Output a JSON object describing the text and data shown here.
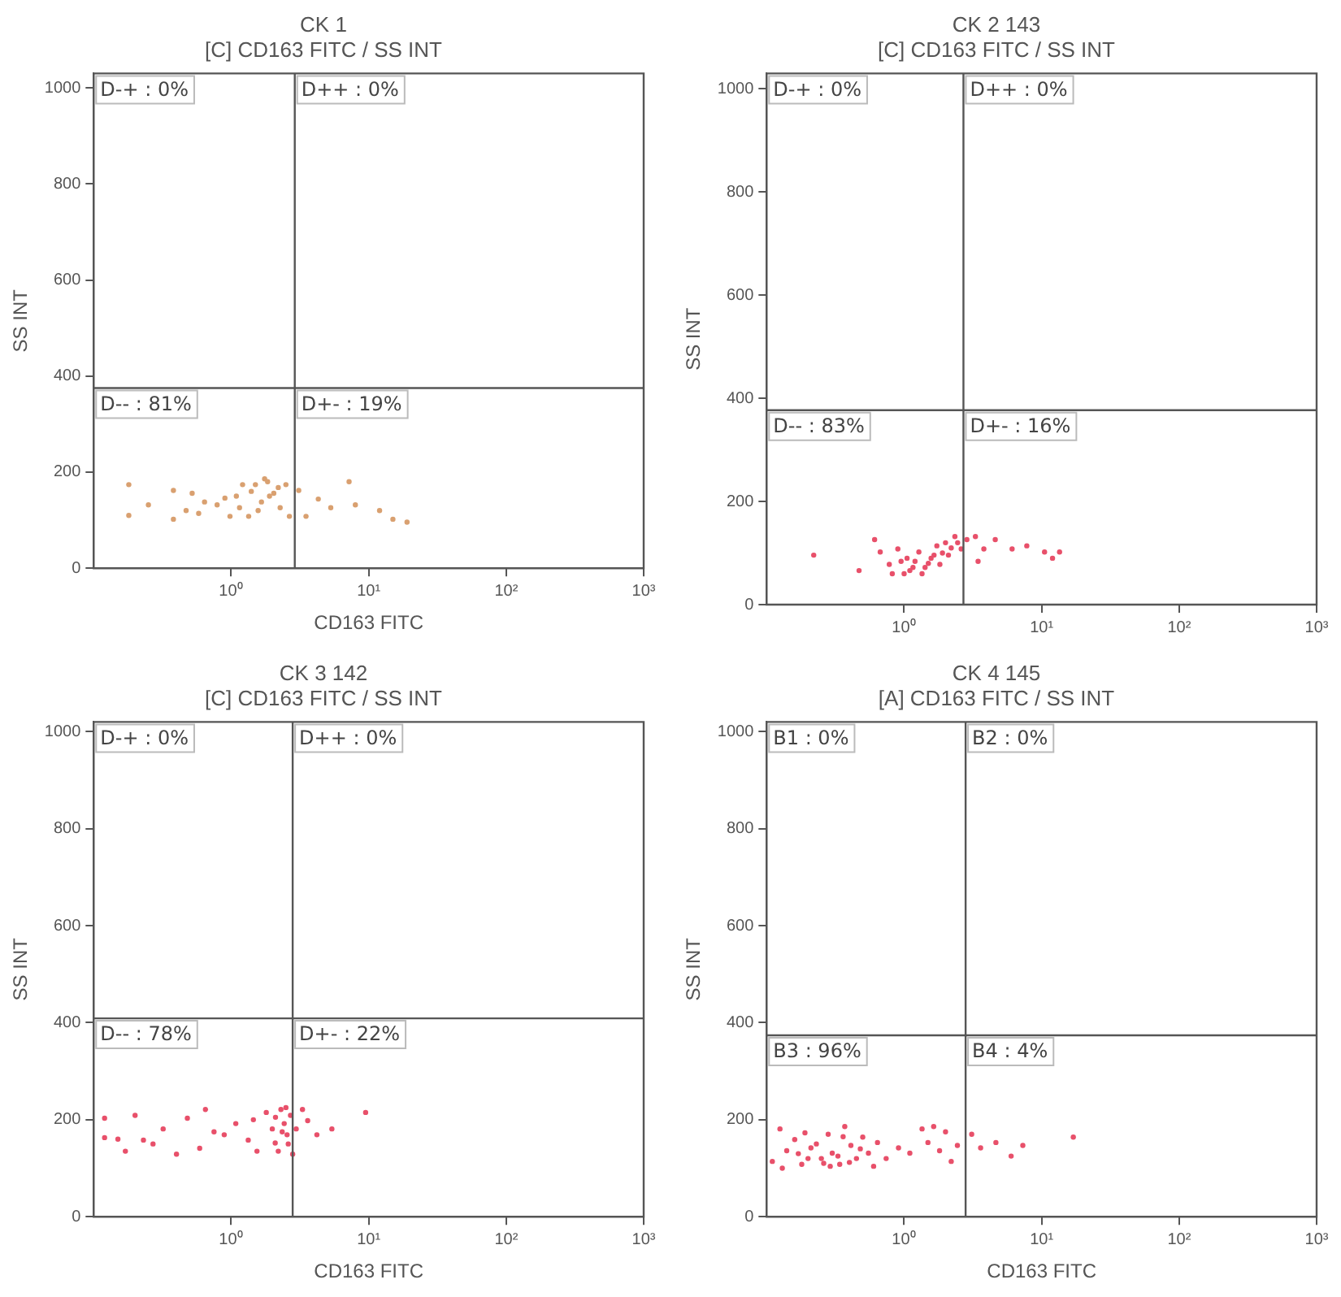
{
  "chart_data": [
    {
      "type": "scatter",
      "title": "CK 1",
      "subtitle": "[C] CD163 FITC / SS INT",
      "xlabel": "CD163 FITC",
      "ylabel": "SS INT",
      "log": "x",
      "xlim": [
        0.1,
        1000
      ],
      "ylim": [
        0,
        1030
      ],
      "xticks": [
        {
          "value": 1,
          "label": "10⁰"
        },
        {
          "value": 10,
          "label": "10¹"
        },
        {
          "value": 100,
          "label": "10²"
        },
        {
          "value": 1000,
          "label": "10³"
        }
      ],
      "yticks": [
        0,
        200,
        400,
        600,
        800,
        1000
      ],
      "grid": false,
      "legend": false,
      "marker": "circle",
      "ref_lines": [
        {
          "axis": "x",
          "value": 2.9
        },
        {
          "axis": "y",
          "value": 375
        }
      ],
      "annotations": [
        "D-+ : 0%",
        "D++ : 0%",
        "D-- : 81%",
        "D+- : 19%"
      ],
      "series": [
        {
          "color": "#d9a070",
          "x": [
            0.18,
            0.18,
            0.25,
            0.38,
            0.38,
            0.52,
            0.58,
            0.79,
            0.98,
            1.09,
            1.21,
            1.5,
            1.66,
            1.75,
            1.84,
            2.04,
            2.27,
            2.5,
            2.65,
            3.1,
            3.5,
            4.3,
            5.3,
            7.2,
            8.0,
            12,
            15,
            19,
            1.34,
            0.64,
            0.47,
            1.15,
            1.57,
            1.9,
            2.2,
            1.4,
            0.9
          ],
          "values": [
            174,
            110,
            132,
            162,
            102,
            156,
            114,
            132,
            108,
            150,
            174,
            174,
            138,
            186,
            180,
            156,
            126,
            174,
            108,
            162,
            108,
            144,
            126,
            180,
            132,
            120,
            102,
            96,
            108,
            138,
            120,
            126,
            120,
            150,
            168,
            160,
            146
          ]
        }
      ]
    },
    {
      "type": "scatter",
      "title": "CK 2 143",
      "subtitle": "[C] CD163 FITC / SS INT",
      "ylabel": "SS INT",
      "log": "x",
      "xlim": [
        0.1,
        1000
      ],
      "ylim": [
        0,
        1030
      ],
      "xticks": [
        {
          "value": 1,
          "label": "10⁰"
        },
        {
          "value": 10,
          "label": "10¹"
        },
        {
          "value": 100,
          "label": "10²"
        },
        {
          "value": 1000,
          "label": "10³"
        }
      ],
      "yticks": [
        0,
        200,
        400,
        600,
        800,
        1000
      ],
      "grid": false,
      "legend": false,
      "marker": "circle",
      "ref_lines": [
        {
          "axis": "x",
          "value": 2.7
        },
        {
          "axis": "y",
          "value": 377
        }
      ],
      "annotations": [
        "D-+ : 0%",
        "D++ : 0%",
        "D-- : 83%",
        "D+- : 16%"
      ],
      "series": [
        {
          "color": "#e8506a",
          "x": [
            0.22,
            0.47,
            0.67,
            0.78,
            0.9,
            1.0,
            1.05,
            1.16,
            1.28,
            1.42,
            1.57,
            1.73,
            1.82,
            2.0,
            2.1,
            2.34,
            2.6,
            2.86,
            3.3,
            3.45,
            3.8,
            4.6,
            6.1,
            7.8,
            10.5,
            12,
            13.5,
            0.61,
            0.82,
            1.35,
            1.2,
            1.5,
            1.9,
            2.2,
            1.1,
            0.95,
            1.65,
            2.45
          ],
          "values": [
            96,
            66,
            102,
            78,
            108,
            60,
            90,
            72,
            102,
            72,
            90,
            114,
            78,
            120,
            96,
            132,
            108,
            126,
            132,
            84,
            108,
            126,
            108,
            114,
            102,
            90,
            102,
            126,
            60,
            60,
            84,
            80,
            100,
            110,
            66,
            84,
            96,
            120
          ]
        }
      ]
    },
    {
      "type": "scatter",
      "title": "CK 3 142",
      "subtitle": "[C] CD163 FITC / SS INT",
      "xlabel": "CD163 FITC",
      "ylabel": "SS INT",
      "log": "x",
      "xlim": [
        0.1,
        1000
      ],
      "ylim": [
        0,
        1020
      ],
      "xticks": [
        {
          "value": 1,
          "label": "10⁰"
        },
        {
          "value": 10,
          "label": "10¹"
        },
        {
          "value": 100,
          "label": "10²"
        },
        {
          "value": 1000,
          "label": "10³"
        }
      ],
      "yticks": [
        0,
        200,
        400,
        600,
        800,
        1000
      ],
      "grid": false,
      "legend": false,
      "marker": "circle",
      "ref_lines": [
        {
          "axis": "x",
          "value": 2.8
        },
        {
          "axis": "y",
          "value": 409
        }
      ],
      "annotations": [
        "D-+ : 0%",
        "D++ : 0%",
        "D-- : 78%",
        "D+- : 22%"
      ],
      "series": [
        {
          "color": "#e8506a",
          "x": [
            0.12,
            0.12,
            0.17,
            0.2,
            0.23,
            0.32,
            0.4,
            0.48,
            0.59,
            0.65,
            0.89,
            1.08,
            1.33,
            1.54,
            1.8,
            1.99,
            2.09,
            2.2,
            2.3,
            2.43,
            2.55,
            2.7,
            2.8,
            2.97,
            3.3,
            3.6,
            4.2,
            5.4,
            9.5,
            0.15,
            1.45,
            2.1,
            2.35,
            2.6,
            2.5,
            0.27,
            0.75
          ],
          "values": [
            203,
            163,
            135,
            209,
            158,
            181,
            129,
            203,
            141,
            221,
            169,
            192,
            158,
            135,
            215,
            181,
            152,
            135,
            221,
            192,
            169,
            209,
            129,
            181,
            221,
            198,
            169,
            181,
            215,
            160,
            200,
            205,
            175,
            150,
            225,
            150,
            175
          ]
        }
      ]
    },
    {
      "type": "scatter",
      "title": "CK 4 145",
      "subtitle": "[A] CD163 FITC / SS INT",
      "xlabel": "CD163 FITC",
      "ylabel": "SS INT",
      "log": "x",
      "xlim": [
        0.1,
        1000
      ],
      "ylim": [
        0,
        1020
      ],
      "xticks": [
        {
          "value": 1,
          "label": "10⁰"
        },
        {
          "value": 10,
          "label": "10¹"
        },
        {
          "value": 100,
          "label": "10²"
        },
        {
          "value": 1000,
          "label": "10³"
        }
      ],
      "yticks": [
        0,
        200,
        400,
        600,
        800,
        1000
      ],
      "grid": false,
      "legend": false,
      "marker": "circle",
      "ref_lines": [
        {
          "axis": "x",
          "value": 2.8
        },
        {
          "axis": "y",
          "value": 374
        }
      ],
      "annotations": [
        "B1 : 0%",
        "B2 : 0%",
        "B3 : 96%",
        "B4 : 4%"
      ],
      "series": [
        {
          "color": "#e8506a",
          "x": [
            0.11,
            0.125,
            0.14,
            0.16,
            0.18,
            0.19,
            0.21,
            0.25,
            0.28,
            0.3,
            0.34,
            0.37,
            0.41,
            0.45,
            0.5,
            0.55,
            0.64,
            0.74,
            0.91,
            1.1,
            1.35,
            1.49,
            1.64,
            1.81,
            2.0,
            2.2,
            2.44,
            3.1,
            3.6,
            4.65,
            6.0,
            7.3,
            17,
            0.13,
            0.2,
            0.26,
            0.33,
            0.4,
            0.48,
            0.23,
            0.36,
            0.17,
            0.29,
            0.6
          ],
          "values": [
            114,
            181,
            136,
            159,
            108,
            173,
            142,
            120,
            170,
            131,
            108,
            186,
            147,
            120,
            164,
            131,
            153,
            120,
            142,
            131,
            181,
            153,
            186,
            136,
            175,
            114,
            147,
            170,
            142,
            153,
            125,
            147,
            164,
            100,
            120,
            110,
            125,
            112,
            140,
            150,
            165,
            130,
            104,
            104
          ]
        }
      ]
    }
  ]
}
